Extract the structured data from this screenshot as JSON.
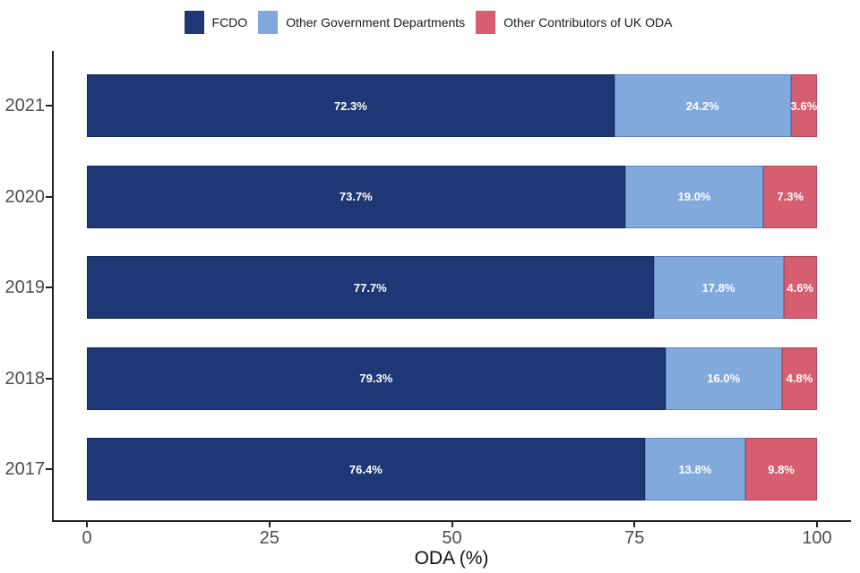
{
  "chart_data": {
    "type": "bar",
    "orientation": "horizontal",
    "stacked": true,
    "title": "",
    "xlabel": "ODA (%)",
    "ylabel": "",
    "categories": [
      "2021",
      "2020",
      "2019",
      "2018",
      "2017"
    ],
    "series": [
      {
        "name": "FCDO",
        "color": "#1E3876",
        "border_color": "#142A5C",
        "values": [
          72.3,
          73.7,
          77.7,
          79.3,
          76.4
        ]
      },
      {
        "name": "Other Government Departments",
        "color": "#81A9DC",
        "border_color": "#5D87BE",
        "values": [
          24.2,
          19.0,
          17.8,
          16.0,
          13.8
        ]
      },
      {
        "name": "Other Contributors of UK ODA",
        "color": "#D55E71",
        "border_color": "#B3485C",
        "values": [
          3.6,
          7.3,
          4.6,
          4.8,
          9.8
        ]
      }
    ],
    "xlim": [
      0,
      100
    ],
    "x_ticks": [
      0,
      25,
      50,
      75,
      100
    ],
    "grid": false,
    "legend_position": "top",
    "value_label_format": "one_decimal_percent",
    "colors": {
      "axis_line": "#222222",
      "tick_label_text": "#4D4D4D",
      "axis_title_text": "#111111",
      "bar_label_text": "#FFFFFF",
      "background": "#FFFFFF"
    }
  }
}
